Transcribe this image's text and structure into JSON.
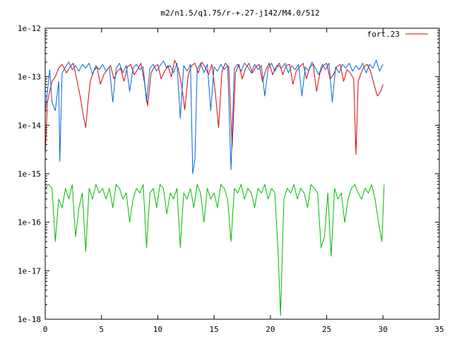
{
  "chart_data": {
    "type": "line",
    "title": "m2/n1.5/q1.75/r-+.27-j142/M4.0/512",
    "xlabel": "",
    "ylabel": "",
    "xlim": [
      0,
      35
    ],
    "ylim": [
      1e-18,
      1e-12
    ],
    "yscale": "log",
    "grid": false,
    "legend_position": "top-right",
    "x_ticks": [
      0,
      5,
      10,
      15,
      20,
      25,
      30,
      35
    ],
    "x_tick_labels": [
      "0",
      "5",
      "10",
      "15",
      "20",
      "25",
      "30",
      "35"
    ],
    "y_ticks": [
      1e-18,
      1e-17,
      1e-16,
      1e-15,
      1e-14,
      1e-13,
      1e-12
    ],
    "y_tick_labels": [
      "1e-18",
      "1e-17",
      "1e-16",
      "1e-15",
      "1e-14",
      "1e-13",
      "1e-12"
    ],
    "series": [
      {
        "name": "fort.23",
        "color": "#e00000",
        "x": [
          0.0,
          0.2,
          0.4,
          0.6,
          0.9,
          1.2,
          1.5,
          1.9,
          2.2,
          2.5,
          2.8,
          3.1,
          3.4,
          3.6,
          3.8,
          4.0,
          4.3,
          4.6,
          4.9,
          5.2,
          5.5,
          5.8,
          6.1,
          6.4,
          6.7,
          7.0,
          7.3,
          7.6,
          7.9,
          8.2,
          8.5,
          8.8,
          9.1,
          9.4,
          9.7,
          10.0,
          10.3,
          10.6,
          10.9,
          11.2,
          11.5,
          11.8,
          12.1,
          12.4,
          12.7,
          13.0,
          13.3,
          13.6,
          13.9,
          14.2,
          14.5,
          14.8,
          15.1,
          15.4,
          15.7,
          16.0,
          16.3,
          16.6,
          16.9,
          17.2,
          17.5,
          17.8,
          18.1,
          18.4,
          18.7,
          19.0,
          19.3,
          19.6,
          19.9,
          20.2,
          20.5,
          20.8,
          21.1,
          21.4,
          21.7,
          22.0,
          22.3,
          22.6,
          22.9,
          23.2,
          23.5,
          23.8,
          24.1,
          24.4,
          24.7,
          25.0,
          25.3,
          25.6,
          25.9,
          26.2,
          26.5,
          26.8,
          27.1,
          27.4,
          27.6,
          27.8,
          28.0,
          28.3,
          28.6,
          28.9,
          29.2,
          29.5,
          29.8,
          30.0
        ],
        "y": [
          2.5e-15,
          3e-14,
          5e-14,
          8e-14,
          1e-13,
          1.5e-13,
          1.8e-13,
          1.2e-13,
          1.6e-13,
          1.9e-13,
          9e-14,
          4e-14,
          1.5e-14,
          9e-15,
          3e-14,
          8e-14,
          1.3e-13,
          1.6e-13,
          7e-14,
          1.1e-13,
          1.4e-13,
          1.7e-13,
          9e-14,
          1.3e-13,
          1.5e-13,
          8e-14,
          1.6e-13,
          1.8e-13,
          1.1e-13,
          1.4e-13,
          1.9e-13,
          8e-14,
          2.5e-14,
          1.2e-13,
          1.6e-13,
          1.8e-13,
          9e-14,
          1.3e-13,
          1.7e-13,
          1e-13,
          2.2e-13,
          1.5e-13,
          7e-14,
          2.1e-14,
          1.1e-13,
          1.7e-13,
          1.9e-13,
          1.2e-13,
          2e-13,
          1.6e-13,
          1.1e-13,
          1.8e-13,
          5e-14,
          9e-15,
          1.3e-13,
          1.9e-13,
          1.6e-13,
          3.5e-15,
          1.2e-13,
          1.8e-13,
          9e-14,
          1.5e-13,
          1.9e-13,
          1.2e-13,
          1.6e-13,
          1.8e-13,
          8e-14,
          1.4e-13,
          1.9e-13,
          1.1e-13,
          1.6e-13,
          1.9e-13,
          1.1e-13,
          1.7e-13,
          1.8e-13,
          7e-14,
          1.3e-13,
          1.6e-13,
          1.9e-13,
          9e-14,
          1.6e-13,
          1.8e-13,
          5e-14,
          1.2e-13,
          1.7e-13,
          1.9e-13,
          9e-14,
          1.1e-13,
          1.6e-13,
          1.8e-13,
          8e-14,
          1.4e-13,
          1.2e-13,
          9e-14,
          2.5e-15,
          8e-14,
          1.1e-13,
          1.6e-13,
          1.8e-13,
          1.3e-13,
          7e-14,
          4e-14,
          5e-14,
          7e-14
        ]
      },
      {
        "name": "",
        "color": "#0066dd",
        "x": [
          0.0,
          0.2,
          0.4,
          0.6,
          0.9,
          1.2,
          1.3,
          1.5,
          1.8,
          2.1,
          2.4,
          2.7,
          3.0,
          3.3,
          3.6,
          3.9,
          4.2,
          4.5,
          4.8,
          5.1,
          5.4,
          5.7,
          6.0,
          6.3,
          6.6,
          6.9,
          7.2,
          7.5,
          7.8,
          8.1,
          8.4,
          8.7,
          9.0,
          9.3,
          9.6,
          9.9,
          10.2,
          10.5,
          10.8,
          11.1,
          11.4,
          11.7,
          12.0,
          12.3,
          12.6,
          12.9,
          13.1,
          13.3,
          13.5,
          13.8,
          14.1,
          14.4,
          14.7,
          15.0,
          15.3,
          15.6,
          15.9,
          16.2,
          16.5,
          16.8,
          17.1,
          17.4,
          17.7,
          18.0,
          18.3,
          18.6,
          18.9,
          19.2,
          19.5,
          19.8,
          20.1,
          20.4,
          20.7,
          21.0,
          21.3,
          21.6,
          21.9,
          22.2,
          22.5,
          22.8,
          23.1,
          23.4,
          23.7,
          24.0,
          24.3,
          24.6,
          24.9,
          25.2,
          25.5,
          25.8,
          26.1,
          26.4,
          26.7,
          27.0,
          27.3,
          27.6,
          27.9,
          28.2,
          28.5,
          28.8,
          29.1,
          29.4,
          29.7,
          30.0
        ],
        "y": [
          1.8e-14,
          5e-14,
          1.4e-13,
          3e-14,
          2e-14,
          8e-14,
          1.8e-15,
          1.2e-13,
          1.6e-13,
          2e-13,
          1.4e-13,
          1.7e-13,
          1.3e-13,
          1.8e-13,
          1.5e-13,
          1.9e-13,
          1.1e-13,
          1.7e-13,
          1.4e-13,
          1.8e-13,
          1.3e-13,
          1.6e-13,
          3e-14,
          1.5e-13,
          1.9e-13,
          1.2e-13,
          1.7e-13,
          5e-14,
          1.5e-13,
          1.8e-13,
          1.4e-13,
          1.6e-13,
          3e-14,
          1.5e-13,
          1.8e-13,
          1.3e-13,
          1.7e-13,
          2.1e-13,
          1.5e-13,
          1.7e-13,
          1.2e-13,
          1.9e-13,
          1.4e-14,
          1.7e-13,
          1.3e-13,
          1.8e-13,
          1e-15,
          2e-15,
          1.4e-13,
          1.9e-13,
          1.2e-13,
          1.8e-13,
          2e-14,
          1.6e-13,
          1.3e-13,
          1.8e-13,
          1.4e-13,
          1.7e-13,
          1.2e-15,
          1.5e-13,
          1.8e-13,
          1.3e-13,
          1.9e-13,
          1.6e-13,
          1.2e-13,
          1.8e-13,
          1.4e-13,
          1.7e-13,
          4e-14,
          1.5e-13,
          1.9e-13,
          1.3e-13,
          1.7e-13,
          1.5e-13,
          1.9e-13,
          1.2e-13,
          1.7e-13,
          1.4e-13,
          1.8e-13,
          4e-14,
          1.6e-13,
          1.3e-13,
          2e-13,
          1.5e-13,
          1.1e-13,
          1.8e-13,
          1.4e-13,
          1.9e-13,
          3e-14,
          1.6e-13,
          1.2e-13,
          1.8e-13,
          1.5e-13,
          1.9e-13,
          1.3e-13,
          1.7e-13,
          1.4e-13,
          1.9e-13,
          1.2e-13,
          1.8e-13,
          1.5e-13,
          2.2e-13,
          1.3e-13,
          1.8e-13
        ]
      },
      {
        "name": "",
        "color": "#00bb00",
        "x": [
          0.0,
          0.3,
          0.6,
          0.9,
          1.2,
          1.5,
          1.8,
          2.1,
          2.4,
          2.7,
          3.0,
          3.3,
          3.6,
          3.9,
          4.2,
          4.5,
          4.8,
          5.1,
          5.4,
          5.7,
          6.0,
          6.3,
          6.6,
          6.9,
          7.2,
          7.5,
          7.8,
          8.1,
          8.4,
          8.7,
          9.0,
          9.3,
          9.6,
          9.9,
          10.2,
          10.5,
          10.8,
          11.1,
          11.4,
          11.7,
          12.0,
          12.3,
          12.6,
          12.9,
          13.2,
          13.5,
          13.8,
          14.1,
          14.4,
          14.7,
          15.0,
          15.3,
          15.6,
          15.9,
          16.2,
          16.5,
          16.8,
          17.1,
          17.4,
          17.7,
          18.0,
          18.3,
          18.6,
          18.9,
          19.2,
          19.5,
          19.8,
          20.1,
          20.4,
          20.7,
          20.9,
          21.2,
          21.5,
          21.8,
          22.1,
          22.4,
          22.7,
          23.0,
          23.3,
          23.6,
          23.9,
          24.2,
          24.5,
          24.8,
          25.1,
          25.4,
          25.7,
          26.0,
          26.3,
          26.6,
          26.9,
          27.2,
          27.5,
          27.8,
          28.1,
          28.4,
          28.7,
          29.0,
          29.3,
          29.6,
          29.9,
          30.1
        ],
        "y": [
          5e-16,
          6e-16,
          5e-16,
          4e-17,
          3e-16,
          2e-16,
          5e-16,
          3e-16,
          6e-16,
          5e-17,
          2e-16,
          4e-16,
          2.5e-17,
          5e-16,
          3e-16,
          6e-16,
          4e-16,
          5e-16,
          3e-16,
          5e-16,
          2e-16,
          6e-16,
          5e-16,
          3e-16,
          4e-16,
          1e-16,
          3e-16,
          5e-16,
          4e-16,
          6e-16,
          3e-17,
          4e-16,
          5e-16,
          2e-16,
          6e-16,
          5e-16,
          1.5e-16,
          4e-16,
          3e-16,
          5e-16,
          3e-17,
          4e-16,
          3e-16,
          5e-16,
          2e-16,
          6e-16,
          4e-16,
          1e-16,
          5e-16,
          3e-16,
          4e-16,
          2e-16,
          6e-16,
          5e-16,
          3e-16,
          4e-17,
          5e-16,
          4e-16,
          6e-16,
          3e-16,
          5e-16,
          4e-16,
          2e-16,
          5e-16,
          4e-16,
          6e-16,
          3e-16,
          5e-16,
          4e-16,
          2e-17,
          1.2e-18,
          3e-16,
          5e-16,
          4e-16,
          6e-16,
          3e-16,
          5e-16,
          4e-16,
          2e-16,
          6e-16,
          5e-16,
          4e-16,
          3e-17,
          5e-17,
          4e-16,
          2e-17,
          5e-16,
          3e-16,
          4e-16,
          1e-16,
          3e-16,
          5e-16,
          6e-16,
          4e-16,
          3e-16,
          5e-16,
          4e-16,
          6e-16,
          3e-16,
          1e-16,
          4e-17,
          6e-16
        ]
      }
    ]
  }
}
